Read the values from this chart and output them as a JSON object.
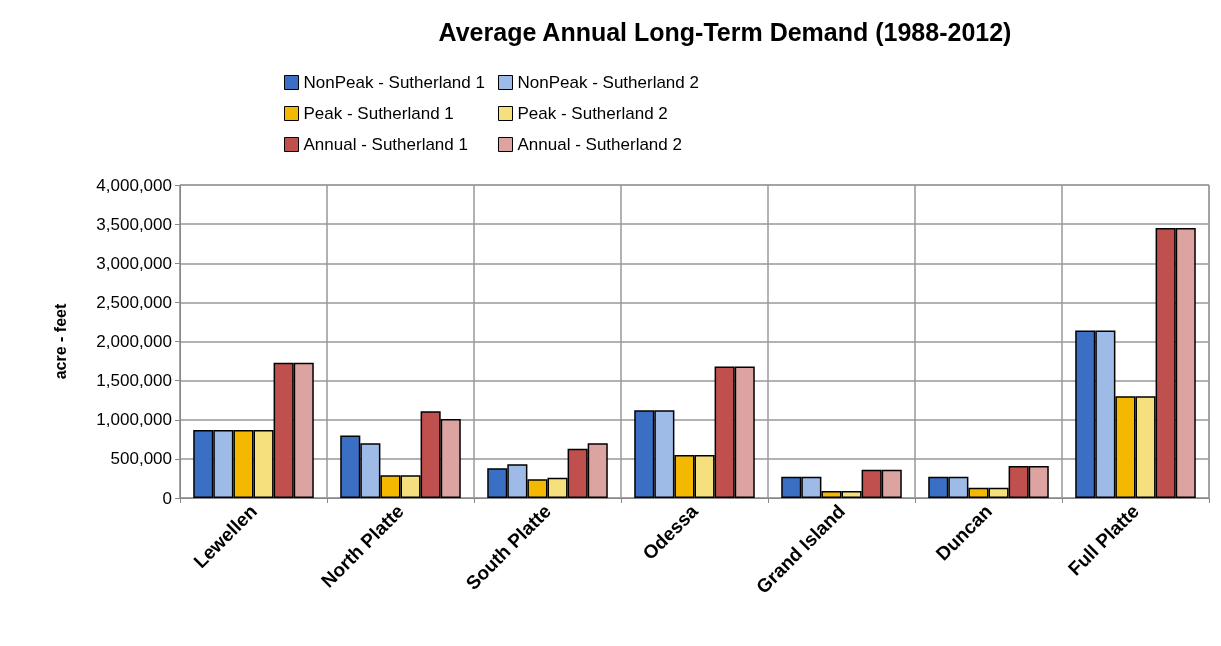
{
  "chart_data": {
    "type": "bar",
    "title": "Average Annual Long-Term Demand (1988-2012)",
    "ylabel": "acre - feet",
    "categories": [
      "Lewellen",
      "North Platte",
      "South Platte",
      "Odessa",
      "Grand Island",
      "Duncan",
      "Full Platte"
    ],
    "series": [
      {
        "name": "NonPeak - Sutherland 1",
        "color": "#3a6fc4",
        "values": [
          870000,
          800000,
          380000,
          1120000,
          270000,
          270000,
          2140000
        ]
      },
      {
        "name": "NonPeak - Sutherland 2",
        "color": "#9dbbe6",
        "values": [
          870000,
          700000,
          430000,
          1120000,
          270000,
          270000,
          2140000
        ]
      },
      {
        "name": "Peak - Sutherland 1",
        "color": "#f5b800",
        "values": [
          870000,
          290000,
          240000,
          550000,
          90000,
          130000,
          1300000
        ]
      },
      {
        "name": "Peak - Sutherland 2",
        "color": "#f6e07e",
        "values": [
          870000,
          290000,
          260000,
          550000,
          90000,
          130000,
          1300000
        ]
      },
      {
        "name": "Annual - Sutherland 1",
        "color": "#c0504d",
        "values": [
          1730000,
          1110000,
          630000,
          1680000,
          360000,
          410000,
          3450000
        ]
      },
      {
        "name": "Annual - Sutherland 2",
        "color": "#dca3a1",
        "values": [
          1730000,
          1010000,
          700000,
          1680000,
          360000,
          410000,
          3450000
        ]
      }
    ],
    "ylim": [
      0,
      4000000
    ],
    "yticks": [
      0,
      {
        "value": 500000,
        "label": "500,000"
      },
      {
        "value": 1000000,
        "label": "1,000,000"
      },
      {
        "value": 1500000,
        "label": "1,500,000"
      },
      {
        "value": 2000000,
        "label": "2,000,000"
      },
      {
        "value": 2500000,
        "label": "2,500,000"
      },
      {
        "value": 3000000,
        "label": "3,000,000"
      },
      {
        "value": 3500000,
        "label": "3,500,000"
      },
      {
        "value": 4000000,
        "label": "4,000,000"
      }
    ],
    "grid": true,
    "legend": "top"
  }
}
